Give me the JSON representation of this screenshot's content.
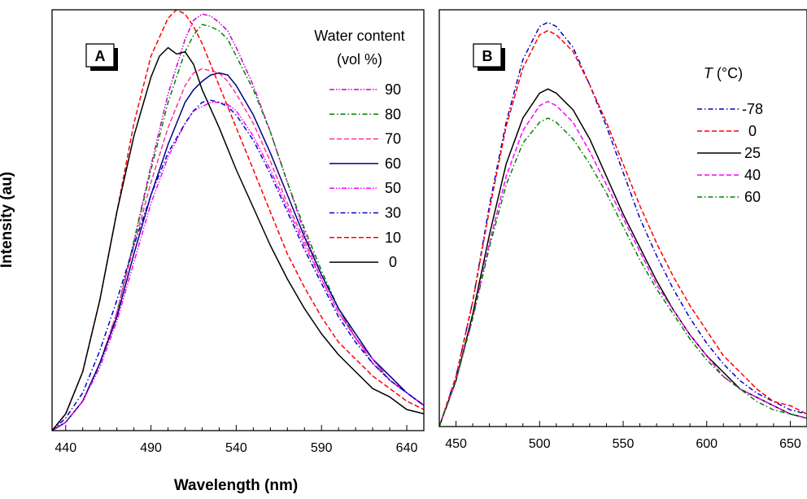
{
  "figure": {
    "ylabel": "Intensity (au)",
    "xlabel": "Wavelength (nm)"
  },
  "chart_data": [
    {
      "type": "line",
      "panel_label": "A",
      "xlabel": "Wavelength (nm)",
      "ylabel": "Intensity (au)",
      "xlim": [
        432,
        650
      ],
      "ylim": [
        0,
        1.0
      ],
      "xticks": [
        440,
        490,
        540,
        590,
        640
      ],
      "grid": false,
      "legend": {
        "title": "Water content",
        "subtitle": "(vol %)",
        "placement": "top-right"
      },
      "series": [
        {
          "name": "90",
          "color": "#cc00cc",
          "dash": "dashdotdot",
          "x": [
            432,
            440,
            450,
            460,
            470,
            480,
            490,
            500,
            510,
            515,
            520,
            525,
            530,
            535,
            540,
            550,
            560,
            570,
            580,
            590,
            600,
            610,
            620,
            630,
            640,
            650
          ],
          "y": [
            0.0,
            0.02,
            0.07,
            0.16,
            0.28,
            0.45,
            0.63,
            0.8,
            0.93,
            0.975,
            0.99,
            0.985,
            0.97,
            0.95,
            0.91,
            0.82,
            0.71,
            0.59,
            0.47,
            0.37,
            0.29,
            0.22,
            0.16,
            0.12,
            0.09,
            0.06
          ]
        },
        {
          "name": "80",
          "color": "#008000",
          "dash": "dashdot",
          "x": [
            432,
            440,
            450,
            460,
            470,
            480,
            490,
            500,
            510,
            515,
            520,
            525,
            530,
            535,
            540,
            550,
            560,
            570,
            580,
            590,
            600,
            610,
            620,
            630,
            640,
            650
          ],
          "y": [
            0.0,
            0.02,
            0.07,
            0.16,
            0.28,
            0.45,
            0.62,
            0.78,
            0.9,
            0.94,
            0.965,
            0.96,
            0.95,
            0.93,
            0.89,
            0.81,
            0.71,
            0.59,
            0.48,
            0.38,
            0.29,
            0.22,
            0.17,
            0.12,
            0.09,
            0.06
          ]
        },
        {
          "name": "70",
          "color": "#ff3399",
          "dash": "dash",
          "x": [
            432,
            440,
            450,
            460,
            470,
            480,
            490,
            500,
            510,
            515,
            520,
            525,
            530,
            535,
            540,
            550,
            560,
            570,
            580,
            590,
            600,
            610,
            620,
            630,
            640,
            650
          ],
          "y": [
            0.0,
            0.02,
            0.07,
            0.16,
            0.28,
            0.44,
            0.59,
            0.72,
            0.82,
            0.85,
            0.86,
            0.855,
            0.85,
            0.83,
            0.8,
            0.73,
            0.64,
            0.54,
            0.45,
            0.36,
            0.28,
            0.22,
            0.17,
            0.13,
            0.09,
            0.06
          ]
        },
        {
          "name": "60",
          "color": "#000080",
          "dash": "solid",
          "x": [
            432,
            440,
            450,
            460,
            470,
            480,
            490,
            500,
            510,
            515,
            520,
            525,
            530,
            535,
            540,
            550,
            560,
            570,
            580,
            590,
            600,
            610,
            620,
            630,
            640,
            650
          ],
          "y": [
            0.0,
            0.02,
            0.07,
            0.16,
            0.27,
            0.42,
            0.56,
            0.68,
            0.78,
            0.81,
            0.83,
            0.845,
            0.85,
            0.845,
            0.82,
            0.75,
            0.66,
            0.56,
            0.46,
            0.37,
            0.29,
            0.23,
            0.17,
            0.13,
            0.09,
            0.06
          ]
        },
        {
          "name": "50",
          "color": "#ff00ff",
          "dash": "dashdotdot",
          "x": [
            432,
            440,
            450,
            460,
            470,
            480,
            490,
            500,
            510,
            515,
            520,
            525,
            530,
            535,
            540,
            550,
            560,
            570,
            580,
            590,
            600,
            610,
            620,
            630,
            640,
            650
          ],
          "y": [
            0.0,
            0.02,
            0.07,
            0.15,
            0.26,
            0.4,
            0.54,
            0.65,
            0.73,
            0.76,
            0.77,
            0.78,
            0.78,
            0.775,
            0.76,
            0.7,
            0.62,
            0.53,
            0.44,
            0.36,
            0.28,
            0.22,
            0.17,
            0.12,
            0.09,
            0.06
          ]
        },
        {
          "name": "30",
          "color": "#0000cc",
          "dash": "dashdot",
          "x": [
            432,
            440,
            450,
            460,
            470,
            480,
            490,
            500,
            510,
            515,
            520,
            525,
            530,
            535,
            540,
            550,
            560,
            570,
            580,
            590,
            600,
            610,
            620,
            630,
            640,
            650
          ],
          "y": [
            0.0,
            0.03,
            0.09,
            0.19,
            0.31,
            0.44,
            0.56,
            0.66,
            0.73,
            0.76,
            0.78,
            0.785,
            0.78,
            0.77,
            0.75,
            0.69,
            0.61,
            0.52,
            0.43,
            0.35,
            0.27,
            0.21,
            0.16,
            0.12,
            0.09,
            0.06
          ]
        },
        {
          "name": "10",
          "color": "#ff0000",
          "dash": "dash",
          "x": [
            432,
            440,
            450,
            460,
            470,
            480,
            490,
            500,
            505,
            510,
            515,
            520,
            525,
            530,
            540,
            550,
            560,
            570,
            580,
            590,
            600,
            610,
            620,
            630,
            640,
            650
          ],
          "y": [
            0.0,
            0.04,
            0.14,
            0.31,
            0.52,
            0.73,
            0.89,
            0.98,
            1.0,
            0.99,
            0.96,
            0.92,
            0.87,
            0.82,
            0.72,
            0.62,
            0.52,
            0.42,
            0.34,
            0.27,
            0.21,
            0.17,
            0.13,
            0.1,
            0.07,
            0.05
          ]
        },
        {
          "name": "0",
          "color": "#000000",
          "dash": "solid",
          "x": [
            432,
            440,
            450,
            460,
            470,
            480,
            490,
            495,
            500,
            505,
            510,
            515,
            520,
            530,
            540,
            550,
            560,
            570,
            580,
            590,
            600,
            610,
            620,
            630,
            640,
            650
          ],
          "y": [
            0.0,
            0.04,
            0.14,
            0.31,
            0.52,
            0.7,
            0.84,
            0.89,
            0.91,
            0.895,
            0.9,
            0.87,
            0.81,
            0.72,
            0.62,
            0.53,
            0.44,
            0.36,
            0.29,
            0.23,
            0.18,
            0.14,
            0.1,
            0.08,
            0.05,
            0.04
          ]
        }
      ]
    },
    {
      "type": "line",
      "panel_label": "B",
      "xlabel": "Wavelength (nm)",
      "ylabel": "Intensity (au)",
      "xlim": [
        440,
        660
      ],
      "ylim": [
        0,
        1.0
      ],
      "xticks": [
        450,
        500,
        550,
        600,
        650
      ],
      "grid": false,
      "legend": {
        "title_italic": "T",
        "title_rest": " (°C)",
        "placement": "top-right"
      },
      "series": [
        {
          "name": "-78",
          "color": "#0000cc",
          "dash": "dashdot",
          "x": [
            440,
            450,
            460,
            470,
            480,
            490,
            500,
            505,
            510,
            520,
            530,
            540,
            550,
            560,
            570,
            580,
            590,
            600,
            610,
            620,
            630,
            640,
            650,
            660
          ],
          "y": [
            0.0,
            0.12,
            0.3,
            0.53,
            0.73,
            0.88,
            0.96,
            0.97,
            0.96,
            0.91,
            0.82,
            0.72,
            0.61,
            0.5,
            0.41,
            0.33,
            0.26,
            0.2,
            0.15,
            0.11,
            0.08,
            0.06,
            0.04,
            0.03
          ]
        },
        {
          "name": "0",
          "color": "#ff0000",
          "dash": "dash",
          "x": [
            440,
            450,
            460,
            470,
            480,
            490,
            500,
            505,
            510,
            520,
            530,
            540,
            550,
            560,
            570,
            580,
            590,
            600,
            610,
            620,
            630,
            640,
            650,
            660
          ],
          "y": [
            0.0,
            0.12,
            0.3,
            0.52,
            0.72,
            0.86,
            0.94,
            0.95,
            0.94,
            0.9,
            0.82,
            0.73,
            0.63,
            0.53,
            0.44,
            0.36,
            0.29,
            0.23,
            0.17,
            0.13,
            0.09,
            0.06,
            0.05,
            0.03
          ]
        },
        {
          "name": "25",
          "color": "#000000",
          "dash": "solid",
          "x": [
            440,
            450,
            460,
            470,
            480,
            490,
            500,
            505,
            510,
            520,
            530,
            540,
            550,
            560,
            570,
            580,
            590,
            600,
            610,
            620,
            630,
            640,
            650,
            660
          ],
          "y": [
            0.0,
            0.11,
            0.27,
            0.46,
            0.63,
            0.74,
            0.8,
            0.81,
            0.8,
            0.76,
            0.69,
            0.6,
            0.51,
            0.43,
            0.35,
            0.28,
            0.22,
            0.17,
            0.13,
            0.09,
            0.07,
            0.05,
            0.03,
            0.02
          ]
        },
        {
          "name": "40",
          "color": "#ff00ff",
          "dash": "dash",
          "x": [
            440,
            450,
            460,
            470,
            480,
            490,
            500,
            505,
            510,
            520,
            530,
            540,
            550,
            560,
            570,
            580,
            590,
            600,
            610,
            620,
            630,
            640,
            650,
            660
          ],
          "y": [
            0.0,
            0.11,
            0.26,
            0.44,
            0.6,
            0.71,
            0.77,
            0.78,
            0.77,
            0.73,
            0.66,
            0.58,
            0.5,
            0.42,
            0.34,
            0.28,
            0.22,
            0.17,
            0.12,
            0.09,
            0.07,
            0.05,
            0.03,
            0.02
          ]
        },
        {
          "name": "60",
          "color": "#008000",
          "dash": "dashdot",
          "x": [
            440,
            450,
            460,
            470,
            480,
            490,
            500,
            505,
            510,
            520,
            530,
            540,
            550,
            560,
            570,
            580,
            590,
            600,
            610,
            620,
            630,
            640,
            650,
            660
          ],
          "y": [
            0.0,
            0.11,
            0.26,
            0.43,
            0.58,
            0.68,
            0.73,
            0.74,
            0.73,
            0.69,
            0.63,
            0.56,
            0.48,
            0.4,
            0.33,
            0.27,
            0.21,
            0.16,
            0.12,
            0.09,
            0.06,
            0.04,
            0.03,
            0.02
          ]
        }
      ]
    }
  ]
}
